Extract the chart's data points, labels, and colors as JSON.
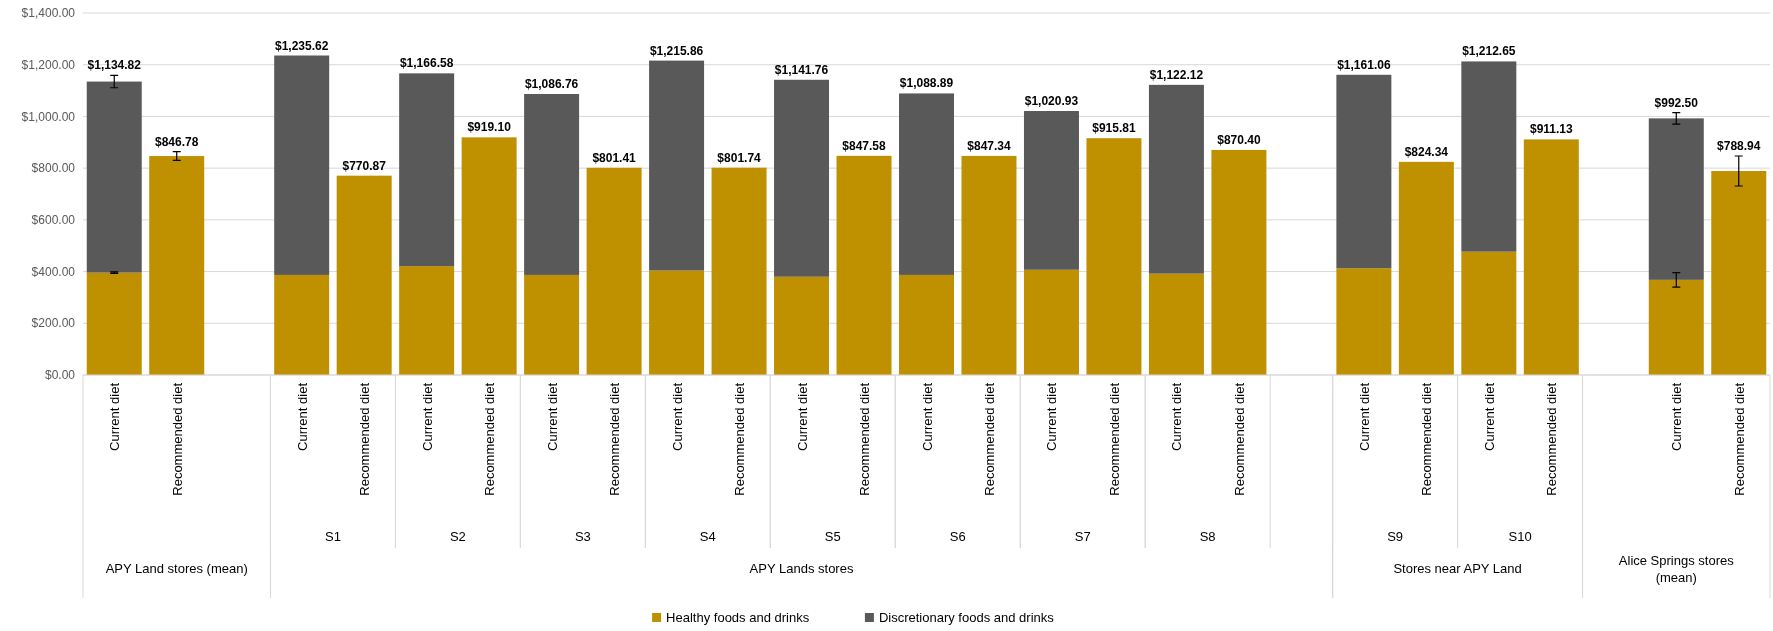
{
  "chart_data": {
    "type": "bar",
    "stacked": true,
    "categories": [
      "Current diet",
      "Recommended diet",
      null,
      "Current diet",
      "Recommended diet",
      "Current diet",
      "Recommended diet",
      "Current diet",
      "Recommended diet",
      "Current diet",
      "Recommended diet",
      "Current diet",
      "Recommended diet",
      "Current diet",
      "Recommended diet",
      "Current diet",
      "Recommended diet",
      "Current diet",
      "Recommended diet",
      null,
      "Current diet",
      "Recommended diet",
      "Current diet",
      "Recommended diet",
      null,
      "Current diet",
      "Recommended diet"
    ],
    "series": [
      {
        "name": "Healthy foods and drinks",
        "color": "#bf9000",
        "values": [
          396,
          846.78,
          null,
          387,
          770.87,
          421,
          919.1,
          387,
          801.41,
          404,
          801.74,
          380,
          847.58,
          387,
          847.34,
          407,
          915.81,
          392,
          870.4,
          null,
          413,
          824.34,
          477,
          911.13,
          null,
          368,
          788.94
        ],
        "errors": [
          3,
          17,
          null,
          null,
          null,
          null,
          null,
          null,
          null,
          null,
          null,
          null,
          null,
          null,
          null,
          null,
          null,
          null,
          null,
          null,
          null,
          null,
          null,
          null,
          null,
          28,
          58
        ]
      },
      {
        "name": "Discretionary foods and drinks",
        "color": "#595959",
        "values": [
          738.82,
          null,
          null,
          848.62,
          null,
          745.58,
          null,
          699.76,
          null,
          811.86,
          null,
          761.76,
          null,
          701.89,
          null,
          613.93,
          null,
          730.12,
          null,
          null,
          748.06,
          null,
          735.65,
          null,
          null,
          624.5,
          null
        ],
        "errors": [
          24,
          null,
          null,
          null,
          null,
          null,
          null,
          null,
          null,
          null,
          null,
          null,
          null,
          null,
          null,
          null,
          null,
          null,
          null,
          null,
          null,
          null,
          null,
          null,
          null,
          22,
          null
        ]
      }
    ],
    "totals": [
      "$1,134.82",
      "$846.78",
      null,
      "$1,235.62",
      "$770.87",
      "$1,166.58",
      "$919.10",
      "$1,086.76",
      "$801.41",
      "$1,215.86",
      "$801.74",
      "$1,141.76",
      "$847.58",
      "$1,088.89",
      "$847.34",
      "$1,020.93",
      "$915.81",
      "$1,122.12",
      "$870.40",
      null,
      "$1,161.06",
      "$824.34",
      "$1,212.65",
      "$911.13",
      null,
      "$992.50",
      "$788.94"
    ],
    "ylim": [
      0,
      1400
    ],
    "yticks": [
      {
        "value": 0,
        "label": "$0.00"
      },
      {
        "value": 200,
        "label": "$200.00"
      },
      {
        "value": 400,
        "label": "$400.00"
      },
      {
        "value": 600,
        "label": "$600.00"
      },
      {
        "value": 800,
        "label": "$800.00"
      },
      {
        "value": 1000,
        "label": "$1,000.00"
      },
      {
        "value": 1200,
        "label": "$1,200.00"
      },
      {
        "value": 1400,
        "label": "$1,400.00"
      }
    ],
    "grid": "y",
    "legend": "bottom",
    "annotations": [
      "S1",
      "S2",
      "S3",
      "S4",
      "S5",
      "S6",
      "S7",
      "S8",
      "S9",
      "S10",
      "APY Land stores (mean)",
      "APY Lands stores",
      "Stores near APY Land",
      "Alice Springs stores (mean)"
    ]
  }
}
